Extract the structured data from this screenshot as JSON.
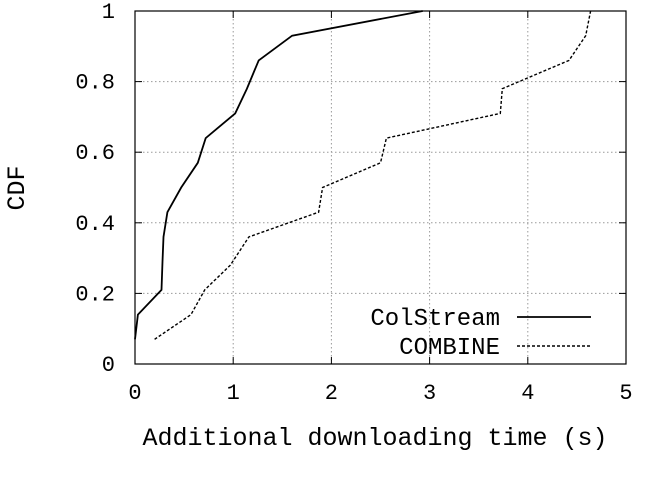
{
  "chart_data": {
    "type": "line",
    "title": "",
    "xlabel": "Additional downloading time (s)",
    "ylabel": "CDF",
    "xlim": [
      0,
      5
    ],
    "ylim": [
      0,
      1
    ],
    "x_ticks": [
      "0",
      "1",
      "2",
      "3",
      "4",
      "5"
    ],
    "y_ticks": [
      "0",
      "0.2",
      "0.4",
      "0.6",
      "0.8",
      "1"
    ],
    "grid": true,
    "legend_position": "bottom-right",
    "series": [
      {
        "name": "ColStream",
        "style": "solid",
        "color": "#000000",
        "points": [
          [
            0.0,
            0.07
          ],
          [
            0.03,
            0.14
          ],
          [
            0.27,
            0.21
          ],
          [
            0.28,
            0.29
          ],
          [
            0.29,
            0.36
          ],
          [
            0.33,
            0.43
          ],
          [
            0.47,
            0.5
          ],
          [
            0.64,
            0.57
          ],
          [
            0.72,
            0.64
          ],
          [
            1.02,
            0.71
          ],
          [
            1.14,
            0.78
          ],
          [
            1.26,
            0.86
          ],
          [
            1.6,
            0.93
          ],
          [
            2.93,
            1.0
          ]
        ]
      },
      {
        "name": "COMBINE",
        "style": "dashed",
        "color": "#000000",
        "points": [
          [
            0.2,
            0.07
          ],
          [
            0.57,
            0.14
          ],
          [
            0.71,
            0.21
          ],
          [
            0.97,
            0.28
          ],
          [
            1.16,
            0.36
          ],
          [
            1.87,
            0.43
          ],
          [
            1.91,
            0.5
          ],
          [
            2.5,
            0.57
          ],
          [
            2.56,
            0.64
          ],
          [
            3.72,
            0.71
          ],
          [
            3.74,
            0.78
          ],
          [
            4.42,
            0.86
          ],
          [
            4.59,
            0.93
          ],
          [
            4.64,
            1.0
          ]
        ]
      }
    ]
  }
}
